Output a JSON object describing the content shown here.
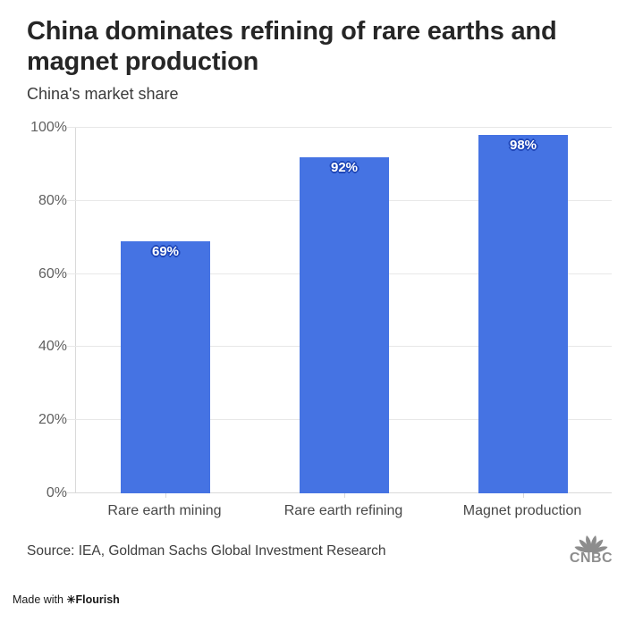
{
  "header": {
    "title": "China dominates refining of rare earths and magnet production",
    "subtitle": "China's market share"
  },
  "chart_data": {
    "type": "bar",
    "title": "China dominates refining of rare earths and magnet production",
    "subtitle": "China's market share",
    "categories": [
      "Rare earth mining",
      "Rare earth refining",
      "Magnet production"
    ],
    "values": [
      69,
      92,
      98
    ],
    "value_labels": [
      "69%",
      "92%",
      "98%"
    ],
    "xlabel": "",
    "ylabel": "",
    "ylim": [
      0,
      100
    ],
    "yticks": [
      0,
      20,
      40,
      60,
      80,
      100
    ],
    "ytick_labels": [
      "0%",
      "20%",
      "40%",
      "60%",
      "80%",
      "100%"
    ],
    "grid": true,
    "legend": false,
    "bar_color": "#4573E3",
    "value_label_color": "#FFFFFF",
    "value_label_outline_color": "#1E46B8",
    "gridline_color": "#E8E8E8",
    "axis_line_color": "#D9D9D9"
  },
  "footer": {
    "source": "Source: IEA, Goldman Sachs Global Investment Research",
    "logo_text": "CNBC",
    "credit_prefix": "Made with ",
    "credit_mark": "✳",
    "credit_brand": "Flourish"
  }
}
